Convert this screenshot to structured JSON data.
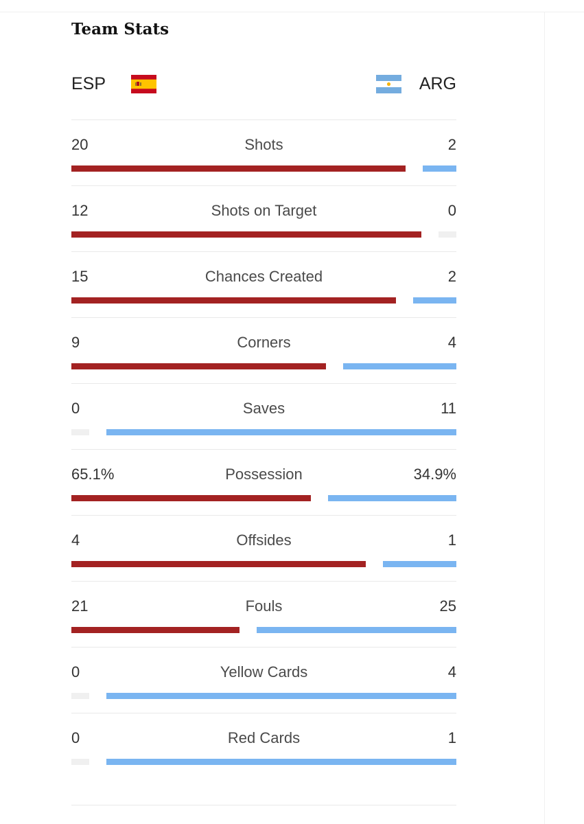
{
  "section_title": "Team Stats",
  "teams": {
    "home": {
      "abbr": "ESP",
      "flag_icon": "spain-flag-icon",
      "color": "#a32222"
    },
    "away": {
      "abbr": "ARG",
      "flag_icon": "argentina-flag-icon",
      "color": "#7ab5f1"
    }
  },
  "zero_bar_color": "#f0f0f0",
  "stats": [
    {
      "label": "Shots",
      "home": "20",
      "away": "2",
      "home_value": 20,
      "away_value": 2
    },
    {
      "label": "Shots on Target",
      "home": "12",
      "away": "0",
      "home_value": 12,
      "away_value": 0
    },
    {
      "label": "Chances Created",
      "home": "15",
      "away": "2",
      "home_value": 15,
      "away_value": 2
    },
    {
      "label": "Corners",
      "home": "9",
      "away": "4",
      "home_value": 9,
      "away_value": 4
    },
    {
      "label": "Saves",
      "home": "0",
      "away": "11",
      "home_value": 0,
      "away_value": 11
    },
    {
      "label": "Possession",
      "home": "65.1%",
      "away": "34.9%",
      "home_value": 65.1,
      "away_value": 34.9
    },
    {
      "label": "Offsides",
      "home": "4",
      "away": "1",
      "home_value": 4,
      "away_value": 1
    },
    {
      "label": "Fouls",
      "home": "21",
      "away": "25",
      "home_value": 21,
      "away_value": 25
    },
    {
      "label": "Yellow Cards",
      "home": "0",
      "away": "4",
      "home_value": 0,
      "away_value": 4
    },
    {
      "label": "Red Cards",
      "home": "0",
      "away": "1",
      "home_value": 0,
      "away_value": 1
    }
  ]
}
